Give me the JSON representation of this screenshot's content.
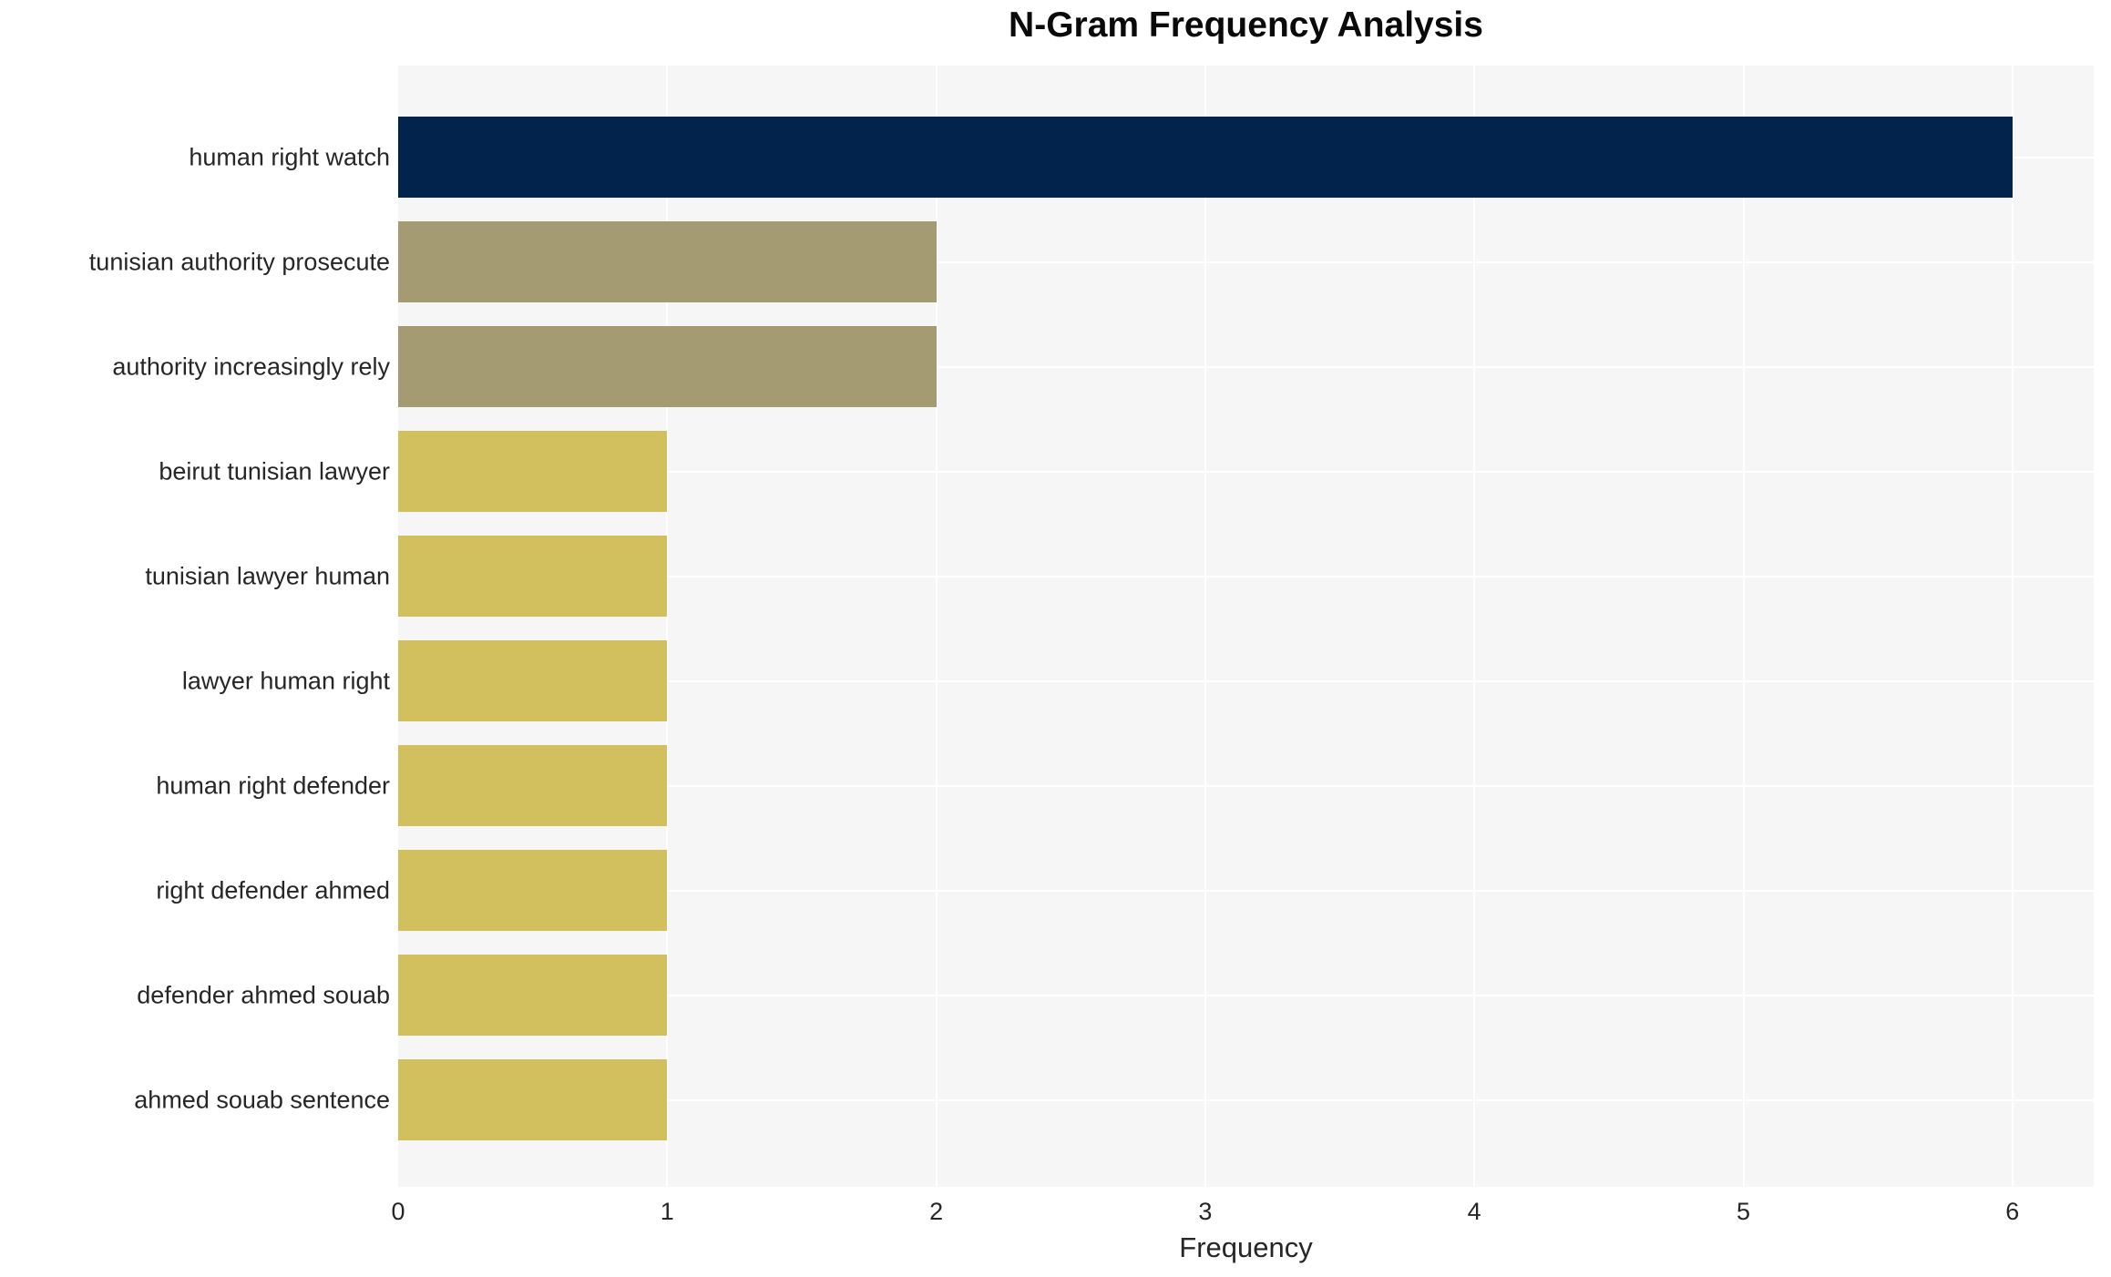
{
  "chart_data": {
    "type": "bar",
    "orientation": "horizontal",
    "title": "N-Gram Frequency Analysis",
    "xlabel": "Frequency",
    "ylabel": "",
    "categories": [
      "human right watch",
      "tunisian authority prosecute",
      "authority increasingly rely",
      "beirut tunisian lawyer",
      "tunisian lawyer human",
      "lawyer human right",
      "human right defender",
      "right defender ahmed",
      "defender ahmed souab",
      "ahmed souab sentence"
    ],
    "values": [
      6,
      2,
      2,
      1,
      1,
      1,
      1,
      1,
      1,
      1
    ],
    "bar_colors": [
      "#02234c",
      "#a49b72",
      "#a49b72",
      "#d2bf5e",
      "#d2bf5e",
      "#d2bf5e",
      "#d2bf5e",
      "#d2bf5e",
      "#d2bf5e",
      "#d2bf5e"
    ],
    "xticks": [
      0,
      1,
      2,
      3,
      4,
      5,
      6
    ],
    "xlim": [
      0,
      6.3
    ],
    "grid": true,
    "legend": "none",
    "colors": {
      "plot_background": "#f6f6f6",
      "page_background": "#ffffff",
      "gridline": "#ffffff",
      "text": "#262626",
      "title_text": "#0a0a0a"
    }
  }
}
